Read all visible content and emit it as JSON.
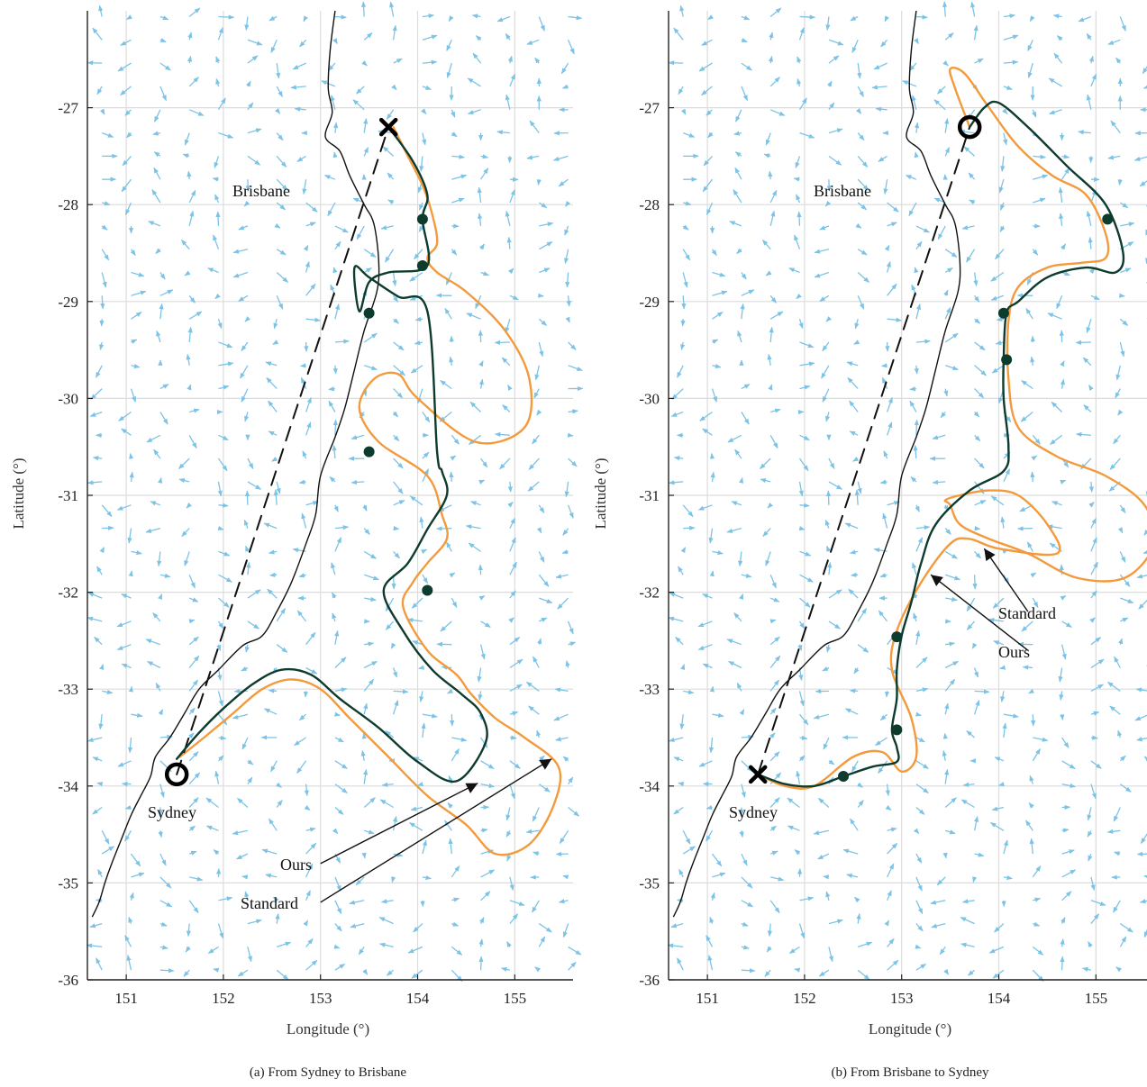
{
  "chart_data": [
    {
      "type": "line",
      "caption": "(a) From Sydney to Brisbane",
      "xlabel": "Longitude (°)",
      "ylabel": "Latitude (°)",
      "xlim": [
        150.6,
        155.6
      ],
      "ylim": [
        -36,
        -26
      ],
      "xticks": [
        151,
        152,
        153,
        154,
        155
      ],
      "yticks": [
        -27,
        -28,
        -29,
        -30,
        -31,
        -32,
        -33,
        -34,
        -35,
        -36
      ],
      "grid": true,
      "labels": [
        {
          "text": "Brisbane",
          "x": 152.1,
          "y": -27.85
        },
        {
          "text": "Sydney",
          "x": 151.55,
          "y": -34.25
        }
      ],
      "start": {
        "x": 151.52,
        "y": -33.88
      },
      "goal": {
        "x": 153.7,
        "y": -27.2
      },
      "series": [
        {
          "name": "Ours",
          "color": "#0d3b2e",
          "x": [
            151.52,
            151.75,
            152.0,
            152.3,
            152.6,
            152.9,
            153.2,
            153.6,
            154.0,
            154.4,
            154.7,
            154.65,
            154.45,
            154.15,
            153.85,
            153.65,
            153.9,
            154.1,
            154.3,
            154.25,
            154.2,
            154.1,
            153.8,
            153.5,
            153.35,
            153.4,
            153.5,
            153.7,
            154.1,
            154.05,
            154.1,
            153.95,
            153.7
          ],
          "y": [
            -33.72,
            -33.45,
            -33.2,
            -32.95,
            -32.8,
            -32.85,
            -33.1,
            -33.4,
            -33.75,
            -33.95,
            -33.55,
            -33.25,
            -33.05,
            -32.8,
            -32.4,
            -31.98,
            -31.7,
            -31.35,
            -31.0,
            -30.75,
            -30.55,
            -29.1,
            -28.95,
            -28.75,
            -28.65,
            -29.1,
            -28.8,
            -28.7,
            -28.63,
            -28.15,
            -27.9,
            -27.55,
            -27.2
          ]
        },
        {
          "name": "Standard",
          "color": "#f39a3c",
          "x": [
            151.55,
            151.8,
            152.1,
            152.4,
            152.7,
            153.0,
            153.3,
            153.7,
            154.1,
            154.5,
            154.8,
            155.15,
            155.4,
            155.45,
            155.1,
            154.8,
            154.55,
            154.4,
            154.1,
            153.85,
            153.95,
            154.1,
            154.3,
            154.25,
            154.1,
            153.6,
            153.4,
            153.55,
            153.8,
            154.0,
            154.6,
            155.1,
            155.15,
            154.9,
            154.5,
            154.2,
            154.1,
            154.2,
            154.15,
            154.05,
            153.9,
            153.75
          ],
          "y": [
            -33.7,
            -33.5,
            -33.25,
            -33.0,
            -32.9,
            -33.0,
            -33.3,
            -33.7,
            -34.1,
            -34.4,
            -34.7,
            -34.6,
            -34.2,
            -33.8,
            -33.5,
            -33.3,
            -33.05,
            -32.85,
            -32.6,
            -32.15,
            -31.9,
            -31.7,
            -31.45,
            -31.2,
            -30.8,
            -30.45,
            -30.1,
            -29.8,
            -29.75,
            -30.0,
            -30.45,
            -30.3,
            -29.8,
            -29.3,
            -28.9,
            -28.7,
            -28.55,
            -28.4,
            -28.1,
            -27.8,
            -27.5,
            -27.2
          ]
        },
        {
          "name": "",
          "color": "#111111",
          "dash": true,
          "x": [
            151.52,
            153.7
          ],
          "y": [
            -33.88,
            -27.2
          ]
        }
      ],
      "waypoints": {
        "x": [
          154.05,
          154.05,
          153.5,
          153.5,
          154.1
        ],
        "y": [
          -28.15,
          -28.63,
          -29.12,
          -30.55,
          -31.98
        ]
      },
      "annotations": [
        {
          "text": "Ours",
          "x": 153.0,
          "y": -34.8,
          "ax": 154.62,
          "ay": -33.97
        },
        {
          "text": "Standard",
          "x": 153.0,
          "y": -35.2,
          "ax": 155.38,
          "ay": -33.72
        }
      ]
    },
    {
      "type": "line",
      "caption": "(b) From Brisbane to Sydney",
      "xlabel": "Longitude (°)",
      "ylabel": "Latitude (°)",
      "xlim": [
        150.6,
        155.6
      ],
      "ylim": [
        -36,
        -26
      ],
      "xticks": [
        151,
        152,
        153,
        154,
        155
      ],
      "yticks": [
        -27,
        -28,
        -29,
        -30,
        -31,
        -32,
        -33,
        -34,
        -35,
        -36
      ],
      "grid": true,
      "labels": [
        {
          "text": "Brisbane",
          "x": 152.1,
          "y": -27.85
        },
        {
          "text": "Sydney",
          "x": 151.55,
          "y": -34.25
        }
      ],
      "start": {
        "x": 153.7,
        "y": -27.2
      },
      "goal": {
        "x": 151.52,
        "y": -33.88
      },
      "series": [
        {
          "name": "Ours",
          "color": "#0d3b2e",
          "x": [
            153.7,
            153.85,
            154.0,
            154.3,
            154.7,
            155.1,
            155.28,
            155.2,
            154.9,
            154.5,
            154.2,
            154.08,
            154.05,
            154.05,
            154.1,
            154.05,
            153.7,
            153.35,
            153.2,
            153.1,
            153.0,
            152.95,
            152.95,
            152.9,
            152.95,
            152.95,
            152.7,
            152.4,
            152.1,
            151.8,
            151.52
          ],
          "y": [
            -27.2,
            -27.0,
            -26.95,
            -27.2,
            -27.6,
            -28.0,
            -28.5,
            -28.7,
            -28.65,
            -28.75,
            -29.0,
            -29.12,
            -29.6,
            -30.0,
            -30.5,
            -30.75,
            -30.95,
            -31.3,
            -31.7,
            -32.1,
            -32.45,
            -32.8,
            -33.1,
            -33.42,
            -33.6,
            -33.75,
            -33.8,
            -33.9,
            -34.0,
            -33.98,
            -33.88
          ],
          "nx": [
            153.7,
            153.9,
            154.2,
            154.6,
            155.0,
            155.15,
            155.3,
            155.35,
            155.1,
            154.7,
            154.3,
            154.08,
            154.05,
            154.06,
            154.1,
            154.3,
            154.0,
            153.6,
            153.3,
            153.15,
            153.0,
            152.93,
            152.95,
            152.98,
            152.92,
            152.8,
            152.6,
            152.4,
            152.2,
            151.95,
            151.7,
            151.52
          ],
          "ny": [
            -27.2,
            -26.95,
            -27.05,
            -27.45,
            -27.85,
            -28.15,
            -28.45,
            -28.7,
            -28.75,
            -28.75,
            -28.95,
            -29.12,
            -29.4,
            -29.6,
            -30.5,
            -30.75,
            -30.9,
            -31.1,
            -31.5,
            -31.9,
            -32.3,
            -32.46,
            -32.8,
            -33.2,
            -33.42,
            -33.7,
            -33.75,
            -33.9,
            -34.0,
            -34.05,
            -33.98,
            -33.88
          ]
        },
        {
          "name": "Standard",
          "color": "#f39a3c",
          "x": [
            153.7,
            153.55,
            153.5,
            153.65,
            153.9,
            154.2,
            154.55,
            154.9,
            155.1,
            155.1,
            154.85,
            154.5,
            154.2,
            154.1,
            154.1,
            154.2,
            154.6,
            155.1,
            155.5,
            155.6,
            155.3,
            154.8,
            154.3,
            153.9,
            153.6,
            153.5,
            153.45,
            153.6,
            153.9,
            154.2,
            154.5,
            154.6,
            154.0,
            153.7,
            153.5,
            153.2,
            152.95,
            152.9,
            153.1,
            153.15,
            153.0,
            152.8,
            152.5,
            152.1,
            151.8,
            151.52
          ],
          "y": [
            -27.2,
            -26.8,
            -26.6,
            -26.65,
            -27.0,
            -27.4,
            -27.7,
            -27.9,
            -28.3,
            -28.55,
            -28.6,
            -28.65,
            -28.85,
            -29.2,
            -29.8,
            -30.3,
            -30.6,
            -30.8,
            -31.1,
            -31.5,
            -31.85,
            -31.85,
            -31.6,
            -31.45,
            -31.3,
            -31.1,
            -31.05,
            -31.0,
            -30.95,
            -31.0,
            -31.3,
            -31.6,
            -31.55,
            -31.45,
            -31.5,
            -31.9,
            -32.4,
            -32.8,
            -33.3,
            -33.7,
            -33.85,
            -33.65,
            -33.7,
            -34.0,
            -34.0,
            -33.88
          ]
        },
        {
          "name": "",
          "color": "#111111",
          "dash": true,
          "x": [
            151.52,
            153.7
          ],
          "y": [
            -33.88,
            -27.2
          ]
        }
      ],
      "waypoints": {
        "x": [
          155.12,
          154.05,
          154.08,
          152.95,
          152.95,
          152.4
        ],
        "y": [
          -28.15,
          -29.12,
          -29.6,
          -32.46,
          -33.42,
          -33.9
        ]
      },
      "annotations": [
        {
          "text": "Standard",
          "x": 154.3,
          "y": -32.2,
          "ax": 153.85,
          "ay": -31.55
        },
        {
          "text": "Ours",
          "x": 154.3,
          "y": -32.6,
          "ax": 153.3,
          "ay": -31.82
        }
      ]
    }
  ]
}
